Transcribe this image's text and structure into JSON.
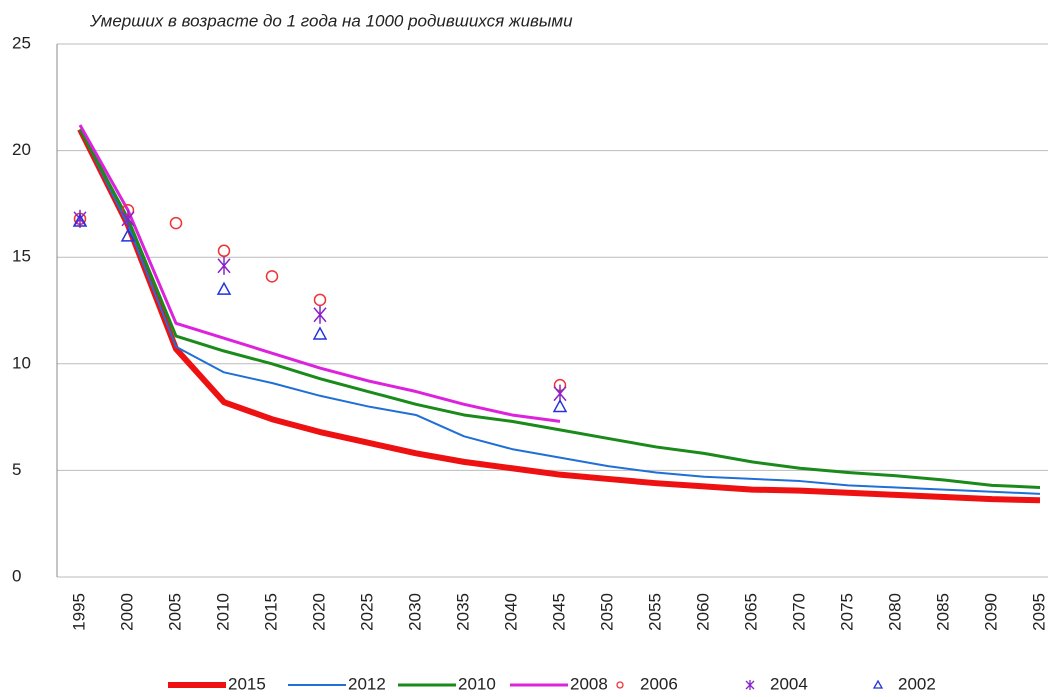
{
  "chart_data": {
    "type": "line",
    "title": "Умерших в возрасте до 1 года на 1000 родившихся живыми",
    "categories": [
      "1995",
      "2000",
      "2005",
      "2010",
      "2015",
      "2020",
      "2025",
      "2030",
      "2035",
      "2040",
      "2045",
      "2050",
      "2055",
      "2060",
      "2065",
      "2070",
      "2075",
      "2080",
      "2085",
      "2090",
      "2095"
    ],
    "ylim": [
      0,
      25
    ],
    "yticks": [
      0,
      5,
      10,
      15,
      20,
      25
    ],
    "grid": true,
    "legend": "bottom",
    "series": [
      {
        "name": "2015",
        "color": "#ee1111",
        "style": "line",
        "width": 6,
        "values": [
          21,
          16.5,
          10.7,
          8.2,
          7.4,
          6.8,
          6.3,
          5.8,
          5.4,
          5.1,
          4.8,
          4.6,
          4.4,
          4.25,
          4.1,
          4.05,
          3.95,
          3.85,
          3.75,
          3.65,
          3.6
        ]
      },
      {
        "name": "2012",
        "color": "#1f6fd6",
        "style": "line",
        "width": 2,
        "values": [
          21,
          16.5,
          10.8,
          9.6,
          9.1,
          8.5,
          8.0,
          7.6,
          6.6,
          6.0,
          5.6,
          5.2,
          4.9,
          4.7,
          4.6,
          4.5,
          4.3,
          4.2,
          4.1,
          4.0,
          3.9
        ]
      },
      {
        "name": "2010",
        "color": "#1a8a1a",
        "style": "line",
        "width": 3,
        "values": [
          21,
          16.8,
          11.3,
          10.6,
          10.0,
          9.3,
          8.7,
          8.1,
          7.6,
          7.3,
          6.9,
          6.5,
          6.1,
          5.8,
          5.4,
          5.1,
          4.9,
          4.75,
          4.55,
          4.3,
          4.2
        ]
      },
      {
        "name": "2008",
        "color": "#dd22dd",
        "style": "line",
        "width": 3,
        "values": [
          21.2,
          17.2,
          11.9,
          11.2,
          10.5,
          9.8,
          9.2,
          8.7,
          8.1,
          7.6,
          7.3,
          null,
          null,
          null,
          null,
          null,
          null,
          null,
          null,
          null,
          null
        ]
      },
      {
        "name": "2006",
        "color": "#ee3333",
        "style": "circle",
        "values": [
          16.8,
          17.2,
          16.6,
          15.3,
          14.1,
          13.0,
          null,
          null,
          null,
          null,
          9.0,
          null,
          null,
          null,
          null,
          null,
          null,
          null,
          null,
          null,
          null
        ]
      },
      {
        "name": "2004",
        "color": "#8822cc",
        "style": "asterisk",
        "values": [
          16.8,
          16.8,
          null,
          14.6,
          null,
          12.3,
          null,
          null,
          null,
          null,
          8.6,
          null,
          null,
          null,
          null,
          null,
          null,
          null,
          null,
          null,
          null
        ]
      },
      {
        "name": "2002",
        "color": "#2233dd",
        "style": "triangle",
        "values": [
          16.7,
          16.0,
          null,
          13.5,
          null,
          11.4,
          null,
          null,
          null,
          null,
          8.0,
          null,
          null,
          null,
          null,
          null,
          null,
          null,
          null,
          null,
          null
        ]
      }
    ]
  }
}
